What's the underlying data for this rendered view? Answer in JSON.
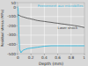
{
  "chart_data": {
    "type": "line",
    "xlabel": "Depth (mm)",
    "ylabel": "Residual stress (MPa)",
    "xlim": [
      0,
      1.0
    ],
    "ylim": [
      -500,
      50
    ],
    "xticks": [
      0,
      0.2,
      0.4,
      0.6,
      0.8,
      1
    ],
    "yticks": [
      50,
      0,
      -100,
      -200,
      -300,
      -400,
      -500
    ],
    "grid": true,
    "series": [
      {
        "name": "Peenement aux microbilles",
        "color": "#44bbdd",
        "x": [
          0.0,
          0.01,
          0.02,
          0.03,
          0.05,
          0.07,
          0.09,
          0.11,
          0.13,
          0.15,
          0.2,
          0.25,
          0.3,
          0.35,
          0.4,
          0.5,
          0.6,
          0.7,
          0.8,
          0.9,
          1.0
        ],
        "values": [
          10,
          -50,
          -300,
          -450,
          -490,
          -470,
          -460,
          -455,
          -450,
          -445,
          -440,
          -435,
          -430,
          -425,
          -420,
          -415,
          -415,
          -415,
          -415,
          -415,
          -415
        ]
      },
      {
        "name": "Laser shock",
        "color": "#444444",
        "x": [
          0.0,
          0.03,
          0.06,
          0.09,
          0.12,
          0.15,
          0.18,
          0.21,
          0.24,
          0.27,
          0.3,
          0.35,
          0.4,
          0.45,
          0.5,
          0.55,
          0.6,
          0.65,
          0.7,
          0.75,
          0.8,
          0.85,
          0.9,
          0.95,
          1.0
        ],
        "values": [
          -80,
          -90,
          -100,
          -105,
          -112,
          -118,
          -122,
          -128,
          -132,
          -138,
          -143,
          -148,
          -152,
          -158,
          -162,
          -168,
          -172,
          -178,
          -182,
          -188,
          -192,
          -198,
          -202,
          -210,
          -218
        ]
      }
    ]
  }
}
